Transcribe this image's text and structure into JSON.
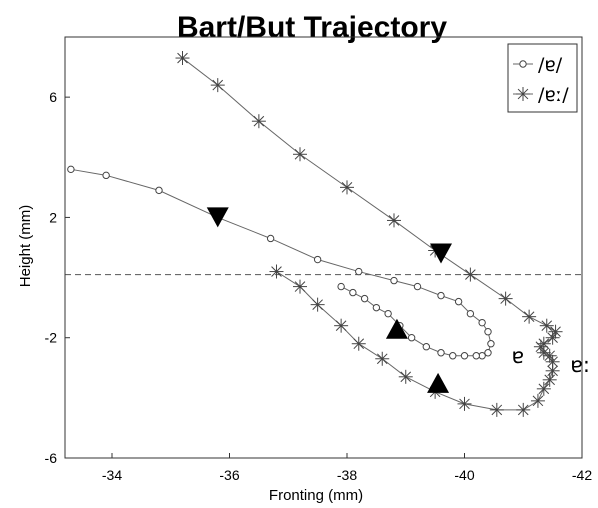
{
  "chart_data": {
    "type": "line",
    "title": "Bart/But Trajectory",
    "xlabel": "Fronting (mm)",
    "ylabel": "Height (mm)",
    "xlim": [
      -33.2,
      -42
    ],
    "ylim": [
      -6,
      8
    ],
    "x_reversed": true,
    "xticks": [
      -34,
      -36,
      -38,
      -40,
      -42
    ],
    "yticks": [
      6,
      2,
      -2,
      -6
    ],
    "grid": false,
    "legend_position": "top-right",
    "reference_line": {
      "y": 0.1,
      "style": "dashed"
    },
    "series": [
      {
        "name": "/ɐ/",
        "marker": "circle",
        "x": [
          -33.3,
          -33.9,
          -34.8,
          -35.8,
          -36.7,
          -37.5,
          -38.2,
          -38.8,
          -39.2,
          -39.6,
          -39.9,
          -40.1,
          -40.3,
          -40.4,
          -40.45,
          -40.4,
          -40.3,
          -40.2,
          -40.0,
          -39.8,
          -39.6,
          -39.35,
          -39.1,
          -38.9,
          -38.7,
          -38.5,
          -38.3,
          -38.1,
          -37.9
        ],
        "y": [
          3.6,
          3.4,
          2.9,
          2.0,
          1.3,
          0.6,
          0.2,
          -0.1,
          -0.3,
          -0.6,
          -0.8,
          -1.2,
          -1.5,
          -1.8,
          -2.2,
          -2.5,
          -2.6,
          -2.6,
          -2.6,
          -2.6,
          -2.5,
          -2.3,
          -2.0,
          -1.6,
          -1.2,
          -1.0,
          -0.7,
          -0.5,
          -0.3
        ]
      },
      {
        "name": "/ɐː/",
        "marker": "asterisk",
        "x": [
          -35.2,
          -35.8,
          -36.5,
          -37.2,
          -38.0,
          -38.8,
          -39.5,
          -40.1,
          -40.7,
          -41.1,
          -41.4,
          -41.55,
          -41.5,
          -41.35,
          -41.3,
          -41.35,
          -41.45,
          -41.5,
          -41.5,
          -41.45,
          -41.35,
          -41.25,
          -41.0,
          -40.55,
          -40.0,
          -39.5,
          -39.0,
          -38.6,
          -38.2,
          -37.9,
          -37.5,
          -37.2,
          -36.8
        ],
        "y": [
          7.3,
          6.4,
          5.2,
          4.1,
          3.0,
          1.9,
          0.9,
          0.1,
          -0.7,
          -1.3,
          -1.6,
          -1.8,
          -2.0,
          -2.2,
          -2.3,
          -2.5,
          -2.6,
          -2.8,
          -3.1,
          -3.4,
          -3.7,
          -4.1,
          -4.4,
          -4.4,
          -4.2,
          -3.8,
          -3.3,
          -2.7,
          -2.2,
          -1.6,
          -0.9,
          -0.3,
          0.2
        ]
      }
    ],
    "arrows": [
      {
        "x": -35.8,
        "y": 2.0,
        "direction": "down"
      },
      {
        "x": -39.6,
        "y": 0.8,
        "direction": "down"
      },
      {
        "x": -38.85,
        "y": -1.7,
        "direction": "up"
      },
      {
        "x": -39.55,
        "y": -3.5,
        "direction": "up"
      }
    ],
    "annotations": [
      {
        "text": "ɐ",
        "x": -40.8,
        "y": -2.6
      },
      {
        "text": "ɐ:",
        "x": -41.8,
        "y": -2.9
      }
    ]
  }
}
